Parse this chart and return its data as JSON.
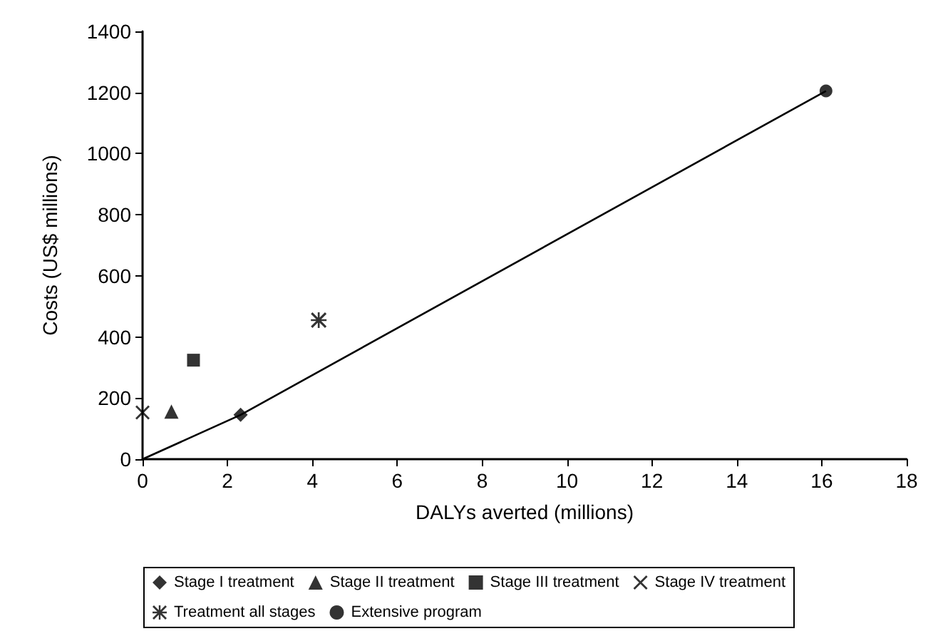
{
  "chart_data": {
    "type": "scatter",
    "xlabel": "DALYs averted (millions)",
    "ylabel": "Costs (US$ millions)",
    "xlim": [
      0,
      18
    ],
    "xticks": [
      0,
      2,
      4,
      6,
      8,
      10,
      12,
      14,
      16,
      18
    ],
    "ylim": [
      0,
      1400
    ],
    "yticks": [
      0,
      200,
      400,
      600,
      800,
      1000,
      1200,
      1400
    ],
    "grid": false,
    "legend": "bottom",
    "series": [
      {
        "name": "Stage I treatment",
        "color": "#000000",
        "marker": "diamond",
        "x": [
          2.31
        ],
        "values": [
          145
        ]
      },
      {
        "name": "Stage II treatment",
        "color": "#000000",
        "marker": "triangle",
        "x": [
          0.68
        ],
        "values": [
          156
        ]
      },
      {
        "name": "Stage III treatment",
        "color": "#000000",
        "marker": "square",
        "x": [
          1.2
        ],
        "values": [
          324
        ]
      },
      {
        "name": "Stage IV treatment",
        "color": "#000000",
        "marker": "cross",
        "x": [
          0
        ],
        "values": [
          153
        ]
      },
      {
        "name": "Treatment all stages",
        "color": "#000000",
        "marker": "star",
        "x": [
          4.15
        ],
        "values": [
          455
        ]
      },
      {
        "name": "Extensive program",
        "color": "#000000",
        "marker": "circle",
        "x": [
          16.1
        ],
        "values": [
          1205
        ]
      },
      {
        "type": "line",
        "color": "#000000",
        "marker": "none",
        "line_style": "solid",
        "x": [
          0,
          2.31,
          16.1
        ],
        "values": [
          0,
          145,
          1205
        ]
      }
    ]
  }
}
